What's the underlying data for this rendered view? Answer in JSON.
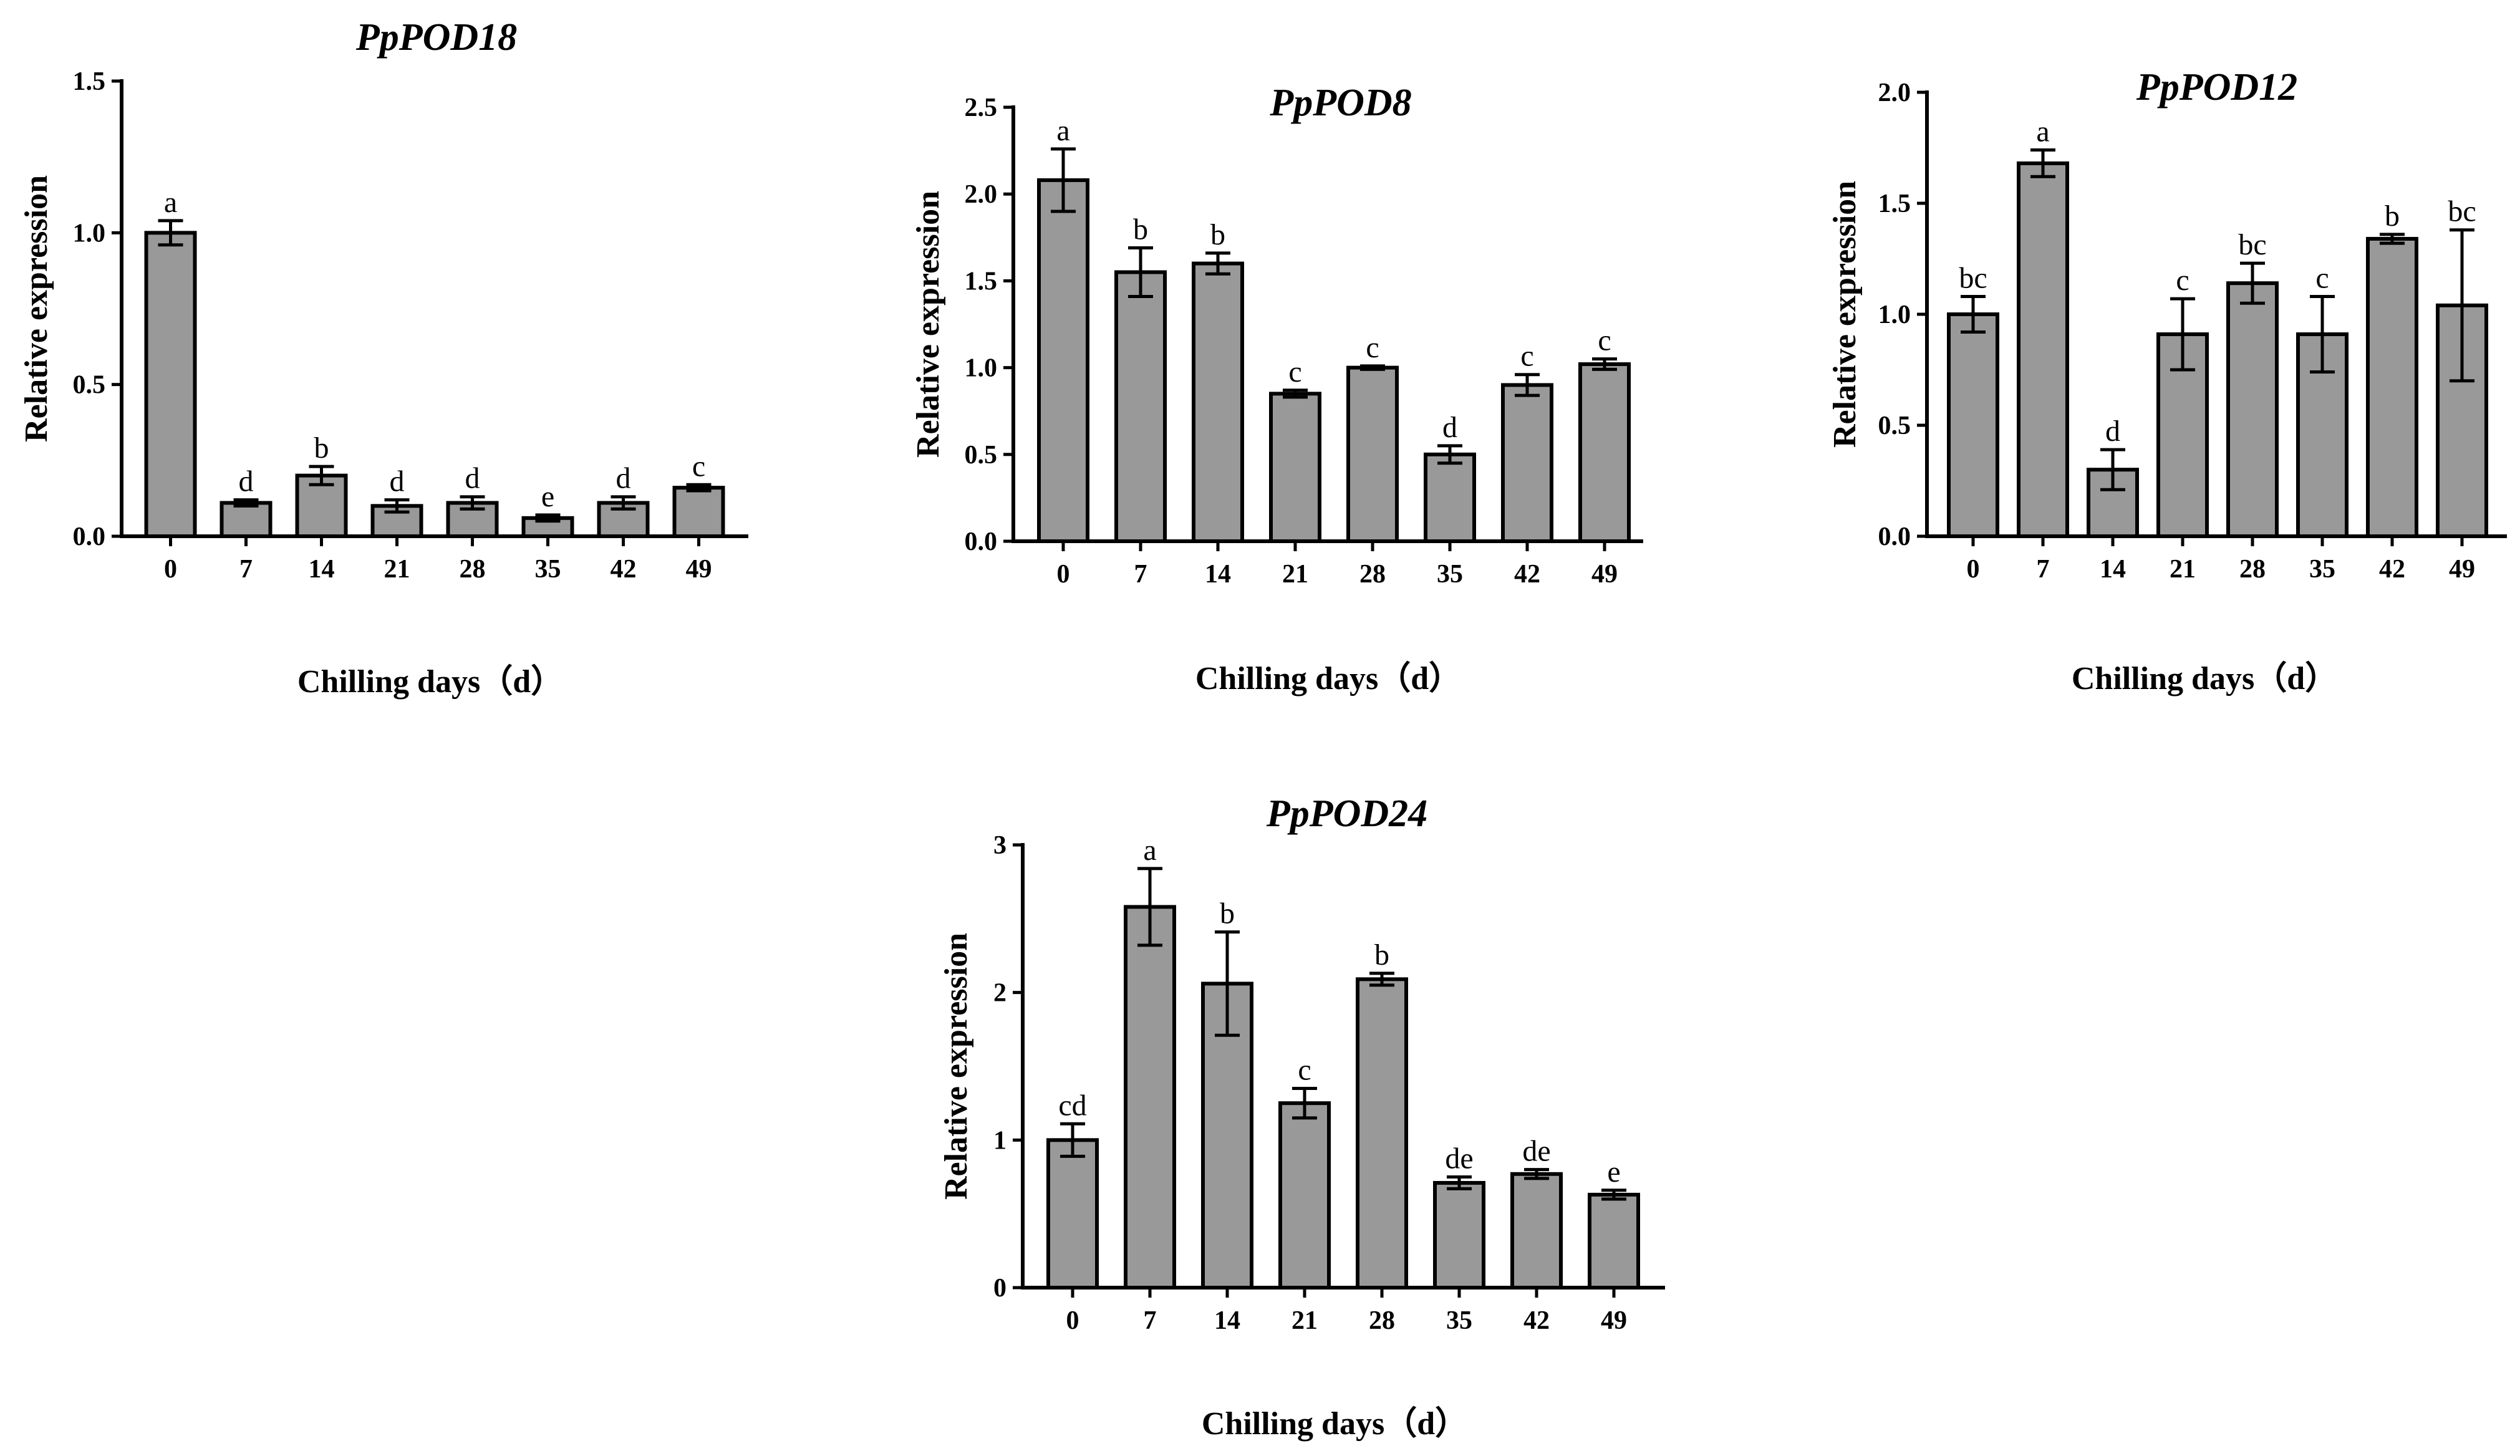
{
  "chart_data": [
    {
      "id": "pod18",
      "type": "bar",
      "title": "PpPOD18",
      "xlabel": "Chilling days（d）",
      "ylabel": "Relative expression",
      "categories": [
        "0",
        "7",
        "14",
        "21",
        "28",
        "35",
        "42",
        "49"
      ],
      "values": [
        1.0,
        0.11,
        0.2,
        0.1,
        0.11,
        0.06,
        0.11,
        0.16
      ],
      "errors": [
        0.04,
        0.01,
        0.03,
        0.02,
        0.02,
        0.01,
        0.02,
        0.01
      ],
      "significance": [
        "a",
        "d",
        "b",
        "d",
        "d",
        "e",
        "d",
        "c"
      ],
      "ylim": [
        0,
        1.5
      ],
      "yticks": [
        0,
        0.5,
        1.0,
        1.5
      ],
      "ytick_labels": [
        "0.0",
        "0.5",
        "1.0",
        "1.5"
      ]
    },
    {
      "id": "pod8",
      "type": "bar",
      "title": "PpPOD8",
      "xlabel": "Chilling days（d）",
      "ylabel": "Relative expression",
      "categories": [
        "0",
        "7",
        "14",
        "21",
        "28",
        "35",
        "42",
        "49"
      ],
      "values": [
        2.08,
        1.55,
        1.6,
        0.85,
        1.0,
        0.5,
        0.9,
        1.02
      ],
      "errors": [
        0.18,
        0.14,
        0.06,
        0.02,
        0.01,
        0.05,
        0.06,
        0.03
      ],
      "significance": [
        "a",
        "b",
        "b",
        "c",
        "c",
        "d",
        "c",
        "c"
      ],
      "ylim": [
        0,
        2.5
      ],
      "yticks": [
        0,
        0.5,
        1.0,
        1.5,
        2.0,
        2.5
      ],
      "ytick_labels": [
        "0.0",
        "0.5",
        "1.0",
        "1.5",
        "2.0",
        "2.5"
      ]
    },
    {
      "id": "pod12",
      "type": "bar",
      "title": "PpPOD12",
      "xlabel": "Chilling days（d）",
      "ylabel": "Relative expression",
      "categories": [
        "0",
        "7",
        "14",
        "21",
        "28",
        "35",
        "42",
        "49"
      ],
      "values": [
        1.0,
        1.68,
        0.3,
        0.91,
        1.14,
        0.91,
        1.34,
        1.04
      ],
      "errors": [
        0.08,
        0.06,
        0.09,
        0.16,
        0.09,
        0.17,
        0.02,
        0.34
      ],
      "significance": [
        "bc",
        "a",
        "d",
        "c",
        "bc",
        "c",
        "b",
        "bc"
      ],
      "ylim": [
        0,
        2.0
      ],
      "yticks": [
        0,
        0.5,
        1.0,
        1.5,
        2.0
      ],
      "ytick_labels": [
        "0.0",
        "0.5",
        "1.0",
        "1.5",
        "2.0"
      ]
    },
    {
      "id": "pod24",
      "type": "bar",
      "title": "PpPOD24",
      "xlabel": "Chilling days（d）",
      "ylabel": "Relative expression",
      "categories": [
        "0",
        "7",
        "14",
        "21",
        "28",
        "35",
        "42",
        "49"
      ],
      "values": [
        1.0,
        2.58,
        2.06,
        1.25,
        2.09,
        0.71,
        0.77,
        0.63
      ],
      "errors": [
        0.11,
        0.26,
        0.35,
        0.1,
        0.04,
        0.04,
        0.03,
        0.03
      ],
      "significance": [
        "cd",
        "a",
        "b",
        "c",
        "b",
        "de",
        "de",
        "e"
      ],
      "ylim": [
        0,
        3
      ],
      "yticks": [
        0,
        1,
        2,
        3
      ],
      "ytick_labels": [
        "0",
        "1",
        "2",
        "3"
      ]
    }
  ]
}
